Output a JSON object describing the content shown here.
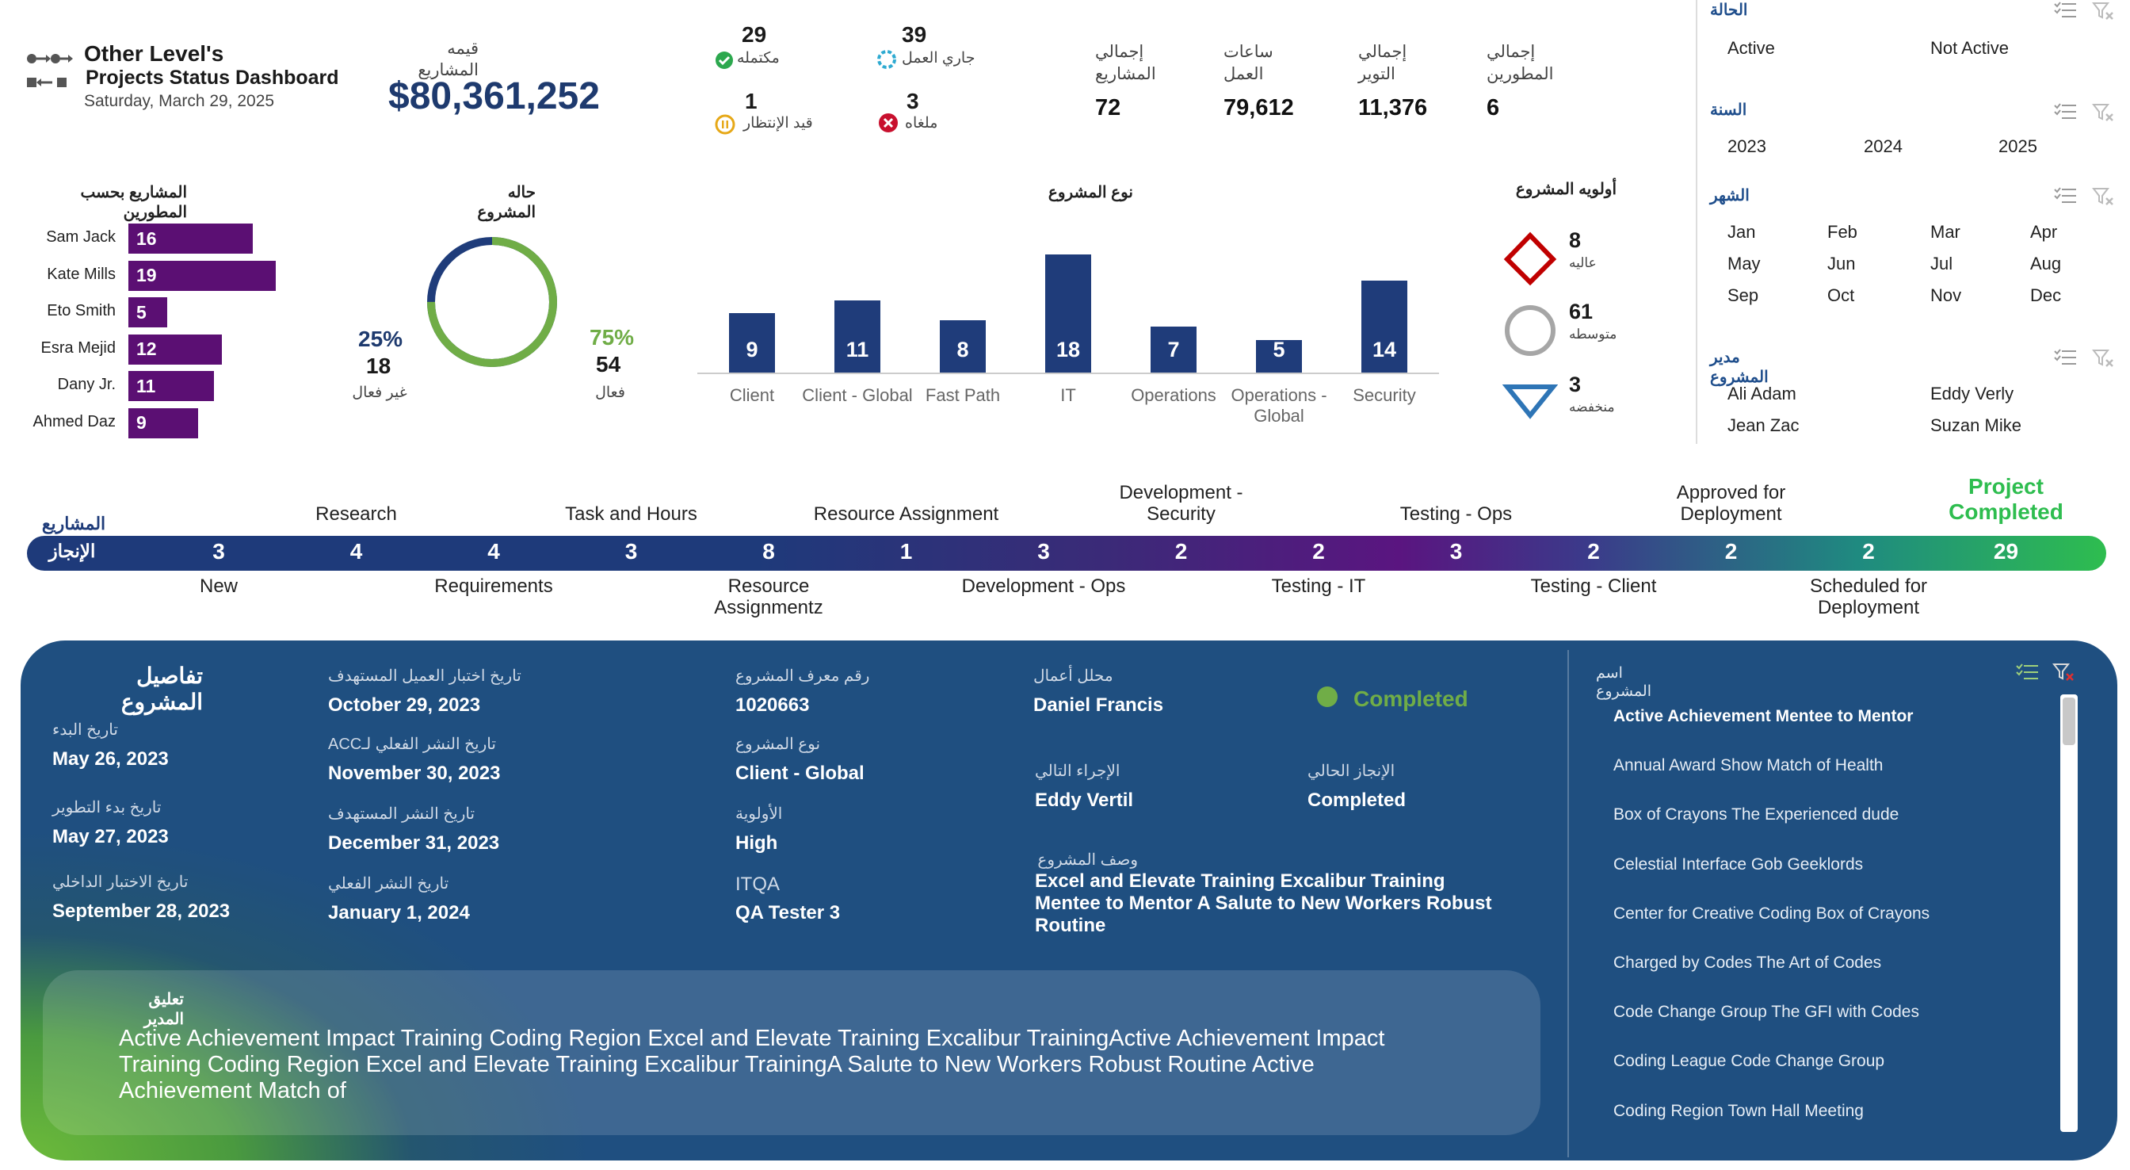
{
  "header": {
    "brand": "Other Level's",
    "subtitle": "Projects Status Dashboard",
    "date": "Saturday, March 29, 2025",
    "project_value_label": "قيمه المشاريع",
    "project_value": "$80,361,252"
  },
  "status_counts": {
    "completed": {
      "value": "29",
      "label": "مكتمله"
    },
    "in_progress": {
      "value": "39",
      "label": "جاري العمل"
    },
    "pending": {
      "value": "1",
      "label": "قيد الإنتظار"
    },
    "cancelled": {
      "value": "3",
      "label": "ملغاه"
    }
  },
  "kpis": [
    {
      "label1": "إجمالي",
      "label2": "المشاريع",
      "value": "72"
    },
    {
      "label1": "ساعات",
      "label2": "العمل",
      "value": "79,612"
    },
    {
      "label1": "إجمالي",
      "label2": "التوير",
      "value": "11,376"
    },
    {
      "label1": "إجمالي",
      "label2": "المطورين",
      "value": "6"
    }
  ],
  "slicers": {
    "status": {
      "title": "الحالة",
      "items": [
        "Active",
        "Not Active"
      ]
    },
    "year": {
      "title": "السنة",
      "items": [
        "2023",
        "2024",
        "2025"
      ]
    },
    "month": {
      "title": "الشهر",
      "items": [
        "Jan",
        "Feb",
        "Mar",
        "Apr",
        "May",
        "Jun",
        "Jul",
        "Aug",
        "Sep",
        "Oct",
        "Nov",
        "Dec"
      ]
    },
    "manager": {
      "title": "مدير المشروع",
      "items": [
        "Ali Adam",
        "Eddy Verly",
        "Jean Zac",
        "Suzan Mike"
      ]
    }
  },
  "dev_chart": {
    "title": "المشاريع بحسب المطورين",
    "rows": [
      {
        "name": "Sam Jack",
        "value": 16
      },
      {
        "name": "Kate Mills",
        "value": 19
      },
      {
        "name": "Eto Smith",
        "value": 5
      },
      {
        "name": "Esra Mejid",
        "value": 12
      },
      {
        "name": "Dany Jr.",
        "value": 11
      },
      {
        "name": "Ahmed Daz",
        "value": 9
      }
    ]
  },
  "status_donut": {
    "title": "حاله المشروع",
    "inactive": {
      "pct": "25%",
      "value": "18",
      "label": "غير فعال"
    },
    "active": {
      "pct": "75%",
      "value": "54",
      "label": "فعال"
    },
    "active_fraction": 0.75,
    "colors": {
      "active": "#70ad47",
      "inactive": "#1f3c7a"
    }
  },
  "type_chart": {
    "title": "نوع المشروع",
    "categories": [
      "Client",
      "Client - Global",
      "Fast Path",
      "IT",
      "Operations",
      "Operations - Global",
      "Security"
    ],
    "values": [
      9,
      11,
      8,
      18,
      7,
      5,
      14
    ]
  },
  "priority": {
    "title": "أولويه المشروع",
    "items": [
      {
        "value": "8",
        "label": "عاليه",
        "icon": "diamond-icon",
        "color": "#c00000"
      },
      {
        "value": "61",
        "label": "متوسطه",
        "icon": "circle-icon",
        "color": "#a6a6a6"
      },
      {
        "value": "3",
        "label": "منخفضه",
        "icon": "triangle-down-icon",
        "color": "#2e75b6"
      }
    ]
  },
  "timeline": {
    "side_label_top": "المشاريع",
    "side_label": "الإنجاز",
    "stages": [
      {
        "value": "3",
        "label": "New",
        "pos": "bottom"
      },
      {
        "value": "4",
        "label": "Research",
        "pos": "top"
      },
      {
        "value": "4",
        "label": "Requirements",
        "pos": "bottom"
      },
      {
        "value": "3",
        "label": "Task and Hours",
        "pos": "top"
      },
      {
        "value": "8",
        "label": "Resource Assignmentz",
        "pos": "bottom"
      },
      {
        "value": "1",
        "label": "Resource Assignment",
        "pos": "top"
      },
      {
        "value": "3",
        "label": "Development - Ops",
        "pos": "bottom"
      },
      {
        "value": "2",
        "label": "Development - Security",
        "pos": "top"
      },
      {
        "value": "2",
        "label": "Testing - IT",
        "pos": "bottom"
      },
      {
        "value": "3",
        "label": "Testing - Ops",
        "pos": "top"
      },
      {
        "value": "2",
        "label": "Testing - Client",
        "pos": "bottom"
      },
      {
        "value": "2",
        "label": "Approved for Deployment",
        "pos": "top"
      },
      {
        "value": "2",
        "label": "Scheduled for Deployment",
        "pos": "bottom"
      },
      {
        "value": "29",
        "label": "Project Completed",
        "pos": "top"
      }
    ]
  },
  "details": {
    "title": "تفاصيل المشروع",
    "start": {
      "label": "تاريخ البدء",
      "value": "May 26, 2023"
    },
    "dev_start": {
      "label": "تاريخ بدء التطوير",
      "value": "May 27, 2023"
    },
    "internal_test": {
      "label": "تاريخ الاختبار الداخلي",
      "value": "September 28, 2023"
    },
    "client_test": {
      "label": "تاريخ اختبار العميل المستهدف",
      "value": "October 29, 2023"
    },
    "acc_deploy": {
      "label": "تاريخ النشر الفعلي لـACC",
      "value": "November 30, 2023"
    },
    "target_deploy": {
      "label": "تاريخ النشر المستهدف",
      "value": "December 31, 2023"
    },
    "actual_deploy": {
      "label": "تاريخ النشر الفعلي",
      "value": "January 1, 2024"
    },
    "project_id": {
      "label": "رقم معرف المشروع",
      "value": "1020663"
    },
    "project_type": {
      "label": "نوع المشروع",
      "value": "Client - Global"
    },
    "priority": {
      "label": "الأولوية",
      "value": "High"
    },
    "itqa": {
      "label": "ITQA",
      "value": "QA Tester 3"
    },
    "business": {
      "label": "محلل أعمال",
      "value": "Daniel Francis"
    },
    "status_badge": "Completed",
    "next_action": {
      "label": "الإجراء التالي",
      "value": "Eddy Vertil"
    },
    "current": {
      "label": "الإنجاز الحالي",
      "value": "Completed"
    },
    "description": {
      "label": "وصف المشروع",
      "value": "Excel and Elevate Training Excalibur Training Mentee to Mentor A Salute to New Workers Robust Routine"
    },
    "comment": {
      "label": "تعليق المدير",
      "value": "Active Achievement Impact Training Coding Region Excel and Elevate Training Excalibur TrainingActive Achievement Impact Training Coding Region Excel and Elevate Training Excalibur TrainingA Salute to New Workers Robust Routine Active Achievement Match of"
    }
  },
  "project_list": {
    "title": "اسم المشروع",
    "items": [
      "Active Achievement Mentee to Mentor",
      "Annual Award Show Match of Health",
      "Box of Crayons The Experienced dude",
      "Celestial Interface Gob Geeklords",
      "Center for Creative Coding Box of Crayons",
      "Charged by Codes The Art of Codes",
      "Code Change Group The GFI with Codes",
      "Coding League Code Change Group",
      "Coding Region Town Hall Meeting"
    ],
    "selected": 0
  }
}
